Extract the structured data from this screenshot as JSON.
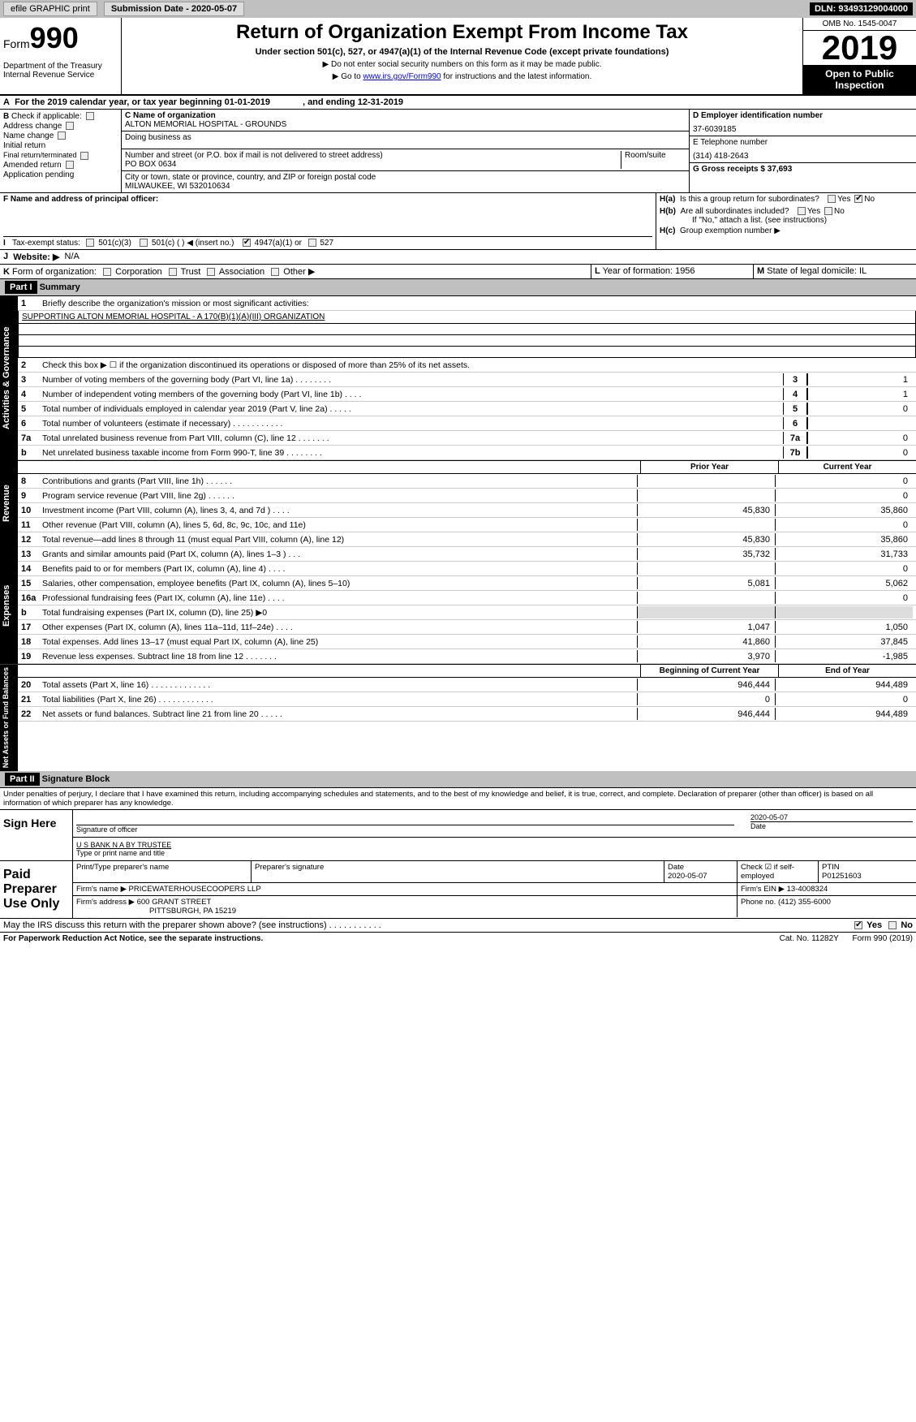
{
  "topbar": {
    "efile": "efile GRAPHIC print",
    "submission_label": "Submission Date - 2020-05-07",
    "dln": "DLN: 93493129004000"
  },
  "header": {
    "form_prefix": "Form",
    "form_number": "990",
    "dept1": "Department of the Treasury",
    "dept2": "Internal Revenue Service",
    "title": "Return of Organization Exempt From Income Tax",
    "subtitle": "Under section 501(c), 527, or 4947(a)(1) of the Internal Revenue Code (except private foundations)",
    "note1": "▶ Do not enter social security numbers on this form as it may be made public.",
    "note2_pre": "▶ Go to ",
    "note2_link": "www.irs.gov/Form990",
    "note2_post": " for instructions and the latest information.",
    "omb": "OMB No. 1545-0047",
    "year": "2019",
    "open": "Open to Public Inspection"
  },
  "sectionA": {
    "a_label": "A",
    "a_text": "For the 2019 calendar year, or tax year beginning 01-01-2019",
    "a_end": ", and ending 12-31-2019"
  },
  "sectionB": {
    "label": "B",
    "check_text": "Check if applicable:",
    "items": [
      "Address change",
      "Name change",
      "Initial return",
      "Final return/terminated",
      "Amended return",
      "Application pending"
    ]
  },
  "sectionC": {
    "name_lbl": "C Name of organization",
    "name": "ALTON MEMORIAL HOSPITAL - GROUNDS",
    "dba_lbl": "Doing business as",
    "street_lbl": "Number and street (or P.O. box if mail is not delivered to street address)",
    "room_lbl": "Room/suite",
    "street": "PO BOX 0634",
    "city_lbl": "City or town, state or province, country, and ZIP or foreign postal code",
    "city": "MILWAUKEE, WI  532010634"
  },
  "sectionD": {
    "ein_lbl": "D Employer identification number",
    "ein": "37-6039185",
    "tel_lbl": "E Telephone number",
    "tel": "(314) 418-2643",
    "gross_lbl": "G Gross receipts $ 37,693"
  },
  "sectionF": {
    "lbl": "F  Name and address of principal officer:"
  },
  "sectionH": {
    "ha": "H(a)",
    "ha_txt": "Is this a group return for subordinates?",
    "hb": "H(b)",
    "hb_txt": "Are all subordinates included?",
    "hb_note": "If \"No,\" attach a list. (see instructions)",
    "hc": "H(c)",
    "hc_txt": "Group exemption number ▶",
    "yes": "Yes",
    "no": "No"
  },
  "sectionI": {
    "lbl": "I",
    "txt": "Tax-exempt status:",
    "o1": "501(c)(3)",
    "o2": "501(c) (  ) ◀ (insert no.)",
    "o3": "4947(a)(1) or",
    "o4": "527"
  },
  "sectionJ": {
    "lbl": "J",
    "txt": "Website: ▶",
    "val": "N/A"
  },
  "sectionK": {
    "lbl": "K",
    "txt": "Form of organization:",
    "o1": "Corporation",
    "o2": "Trust",
    "o3": "Association",
    "o4": "Other ▶"
  },
  "sectionL": {
    "lbl": "L",
    "txt": "Year of formation: 1956"
  },
  "sectionM": {
    "lbl": "M",
    "txt": "State of legal domicile: IL"
  },
  "part1": {
    "hdr": "Part I",
    "title": "Summary",
    "line1_lbl": "1",
    "line1": "Briefly describe the organization's mission or most significant activities:",
    "mission": "SUPPORTING ALTON MEMORIAL HOSPITAL - A 170(B)(1)(A)(III) ORGANIZATION",
    "line2_lbl": "2",
    "line2": "Check this box ▶ ☐ if the organization discontinued its operations or disposed of more than 25% of its net assets."
  },
  "governance_lines": [
    {
      "n": "3",
      "t": "Number of voting members of the governing body (Part VI, line 1a)  .  .  .  .  .  .  .  .",
      "b": "3",
      "v": "1"
    },
    {
      "n": "4",
      "t": "Number of independent voting members of the governing body (Part VI, line 1b)  .  .  .  .",
      "b": "4",
      "v": "1"
    },
    {
      "n": "5",
      "t": "Total number of individuals employed in calendar year 2019 (Part V, line 2a)  .  .  .  .  .",
      "b": "5",
      "v": "0"
    },
    {
      "n": "6",
      "t": "Total number of volunteers (estimate if necessary)  .  .  .  .  .  .  .  .  .  .  .",
      "b": "6",
      "v": ""
    },
    {
      "n": "7a",
      "t": "Total unrelated business revenue from Part VIII, column (C), line 12  .  .  .  .  .  .  .",
      "b": "7a",
      "v": "0"
    },
    {
      "n": "b",
      "t": "Net unrelated business taxable income from Form 990-T, line 39  .  .  .  .  .  .  .  .",
      "b": "7b",
      "v": "0"
    }
  ],
  "col_hdr": {
    "prior": "Prior Year",
    "current": "Current Year"
  },
  "revenue_lines": [
    {
      "n": "8",
      "t": "Contributions and grants (Part VIII, line 1h)  .  .  .  .  .  .",
      "p": "",
      "c": "0"
    },
    {
      "n": "9",
      "t": "Program service revenue (Part VIII, line 2g)  .  .  .  .  .  .",
      "p": "",
      "c": "0"
    },
    {
      "n": "10",
      "t": "Investment income (Part VIII, column (A), lines 3, 4, and 7d )  .  .  .  .",
      "p": "45,830",
      "c": "35,860"
    },
    {
      "n": "11",
      "t": "Other revenue (Part VIII, column (A), lines 5, 6d, 8c, 9c, 10c, and 11e)",
      "p": "",
      "c": "0"
    },
    {
      "n": "12",
      "t": "Total revenue—add lines 8 through 11 (must equal Part VIII, column (A), line 12)",
      "p": "45,830",
      "c": "35,860"
    }
  ],
  "expense_lines": [
    {
      "n": "13",
      "t": "Grants and similar amounts paid (Part IX, column (A), lines 1–3 )  .  .  .",
      "p": "35,732",
      "c": "31,733"
    },
    {
      "n": "14",
      "t": "Benefits paid to or for members (Part IX, column (A), line 4)  .  .  .  .",
      "p": "",
      "c": "0"
    },
    {
      "n": "15",
      "t": "Salaries, other compensation, employee benefits (Part IX, column (A), lines 5–10)",
      "p": "5,081",
      "c": "5,062"
    },
    {
      "n": "16a",
      "t": "Professional fundraising fees (Part IX, column (A), line 11e)  .  .  .  .",
      "p": "",
      "c": "0"
    },
    {
      "n": "b",
      "t": "Total fundraising expenses (Part IX, column (D), line 25) ▶0",
      "p": "",
      "c": "",
      "shade": true
    },
    {
      "n": "17",
      "t": "Other expenses (Part IX, column (A), lines 11a–11d, 11f–24e)  .  .  .  .",
      "p": "1,047",
      "c": "1,050"
    },
    {
      "n": "18",
      "t": "Total expenses. Add lines 13–17 (must equal Part IX, column (A), line 25)",
      "p": "41,860",
      "c": "37,845"
    },
    {
      "n": "19",
      "t": "Revenue less expenses. Subtract line 18 from line 12  .  .  .  .  .  .  .",
      "p": "3,970",
      "c": "-1,985"
    }
  ],
  "col_hdr2": {
    "begin": "Beginning of Current Year",
    "end": "End of Year"
  },
  "net_lines": [
    {
      "n": "20",
      "t": "Total assets (Part X, line 16)  .  .  .  .  .  .  .  .  .  .  .  .  .",
      "p": "946,444",
      "c": "944,489"
    },
    {
      "n": "21",
      "t": "Total liabilities (Part X, line 26)  .  .  .  .  .  .  .  .  .  .  .  .",
      "p": "0",
      "c": "0"
    },
    {
      "n": "22",
      "t": "Net assets or fund balances. Subtract line 21 from line 20  .  .  .  .  .",
      "p": "946,444",
      "c": "944,489"
    }
  ],
  "vlabels": {
    "gov": "Activities & Governance",
    "rev": "Revenue",
    "exp": "Expenses",
    "net": "Net Assets or Fund Balances"
  },
  "part2": {
    "hdr": "Part II",
    "title": "Signature Block",
    "penalty": "Under penalties of perjury, I declare that I have examined this return, including accompanying schedules and statements, and to the best of my knowledge and belief, it is true, correct, and complete. Declaration of preparer (other than officer) is based on all information of which preparer has any knowledge."
  },
  "sign": {
    "lbl": "Sign Here",
    "sig_of": "Signature of officer",
    "date": "2020-05-07",
    "date_lbl": "Date",
    "name": "U S BANK N A BY TRUSTEE",
    "name_lbl": "Type or print name and title"
  },
  "paid": {
    "lbl": "Paid Preparer Use Only",
    "prep_name_lbl": "Print/Type preparer's name",
    "prep_sig_lbl": "Preparer's signature",
    "date_lbl": "Date",
    "date": "2020-05-07",
    "check_lbl": "Check ☑ if self-employed",
    "ptin_lbl": "PTIN",
    "ptin": "P01251603",
    "firm_name_lbl": "Firm's name  ▶",
    "firm_name": "PRICEWATERHOUSECOOPERS LLP",
    "firm_ein_lbl": "Firm's EIN ▶",
    "firm_ein": "13-4008324",
    "firm_addr_lbl": "Firm's address ▶",
    "firm_addr1": "600 GRANT STREET",
    "firm_addr2": "PITTSBURGH, PA  15219",
    "phone_lbl": "Phone no.",
    "phone": "(412) 355-6000"
  },
  "discuss": {
    "txt": "May the IRS discuss this return with the preparer shown above? (see instructions)  .  .  .  .  .  .  .  .  .  .  .",
    "yes": "Yes",
    "no": "No"
  },
  "footer": {
    "left": "For Paperwork Reduction Act Notice, see the separate instructions.",
    "mid": "Cat. No. 11282Y",
    "right": "Form 990 (2019)"
  }
}
